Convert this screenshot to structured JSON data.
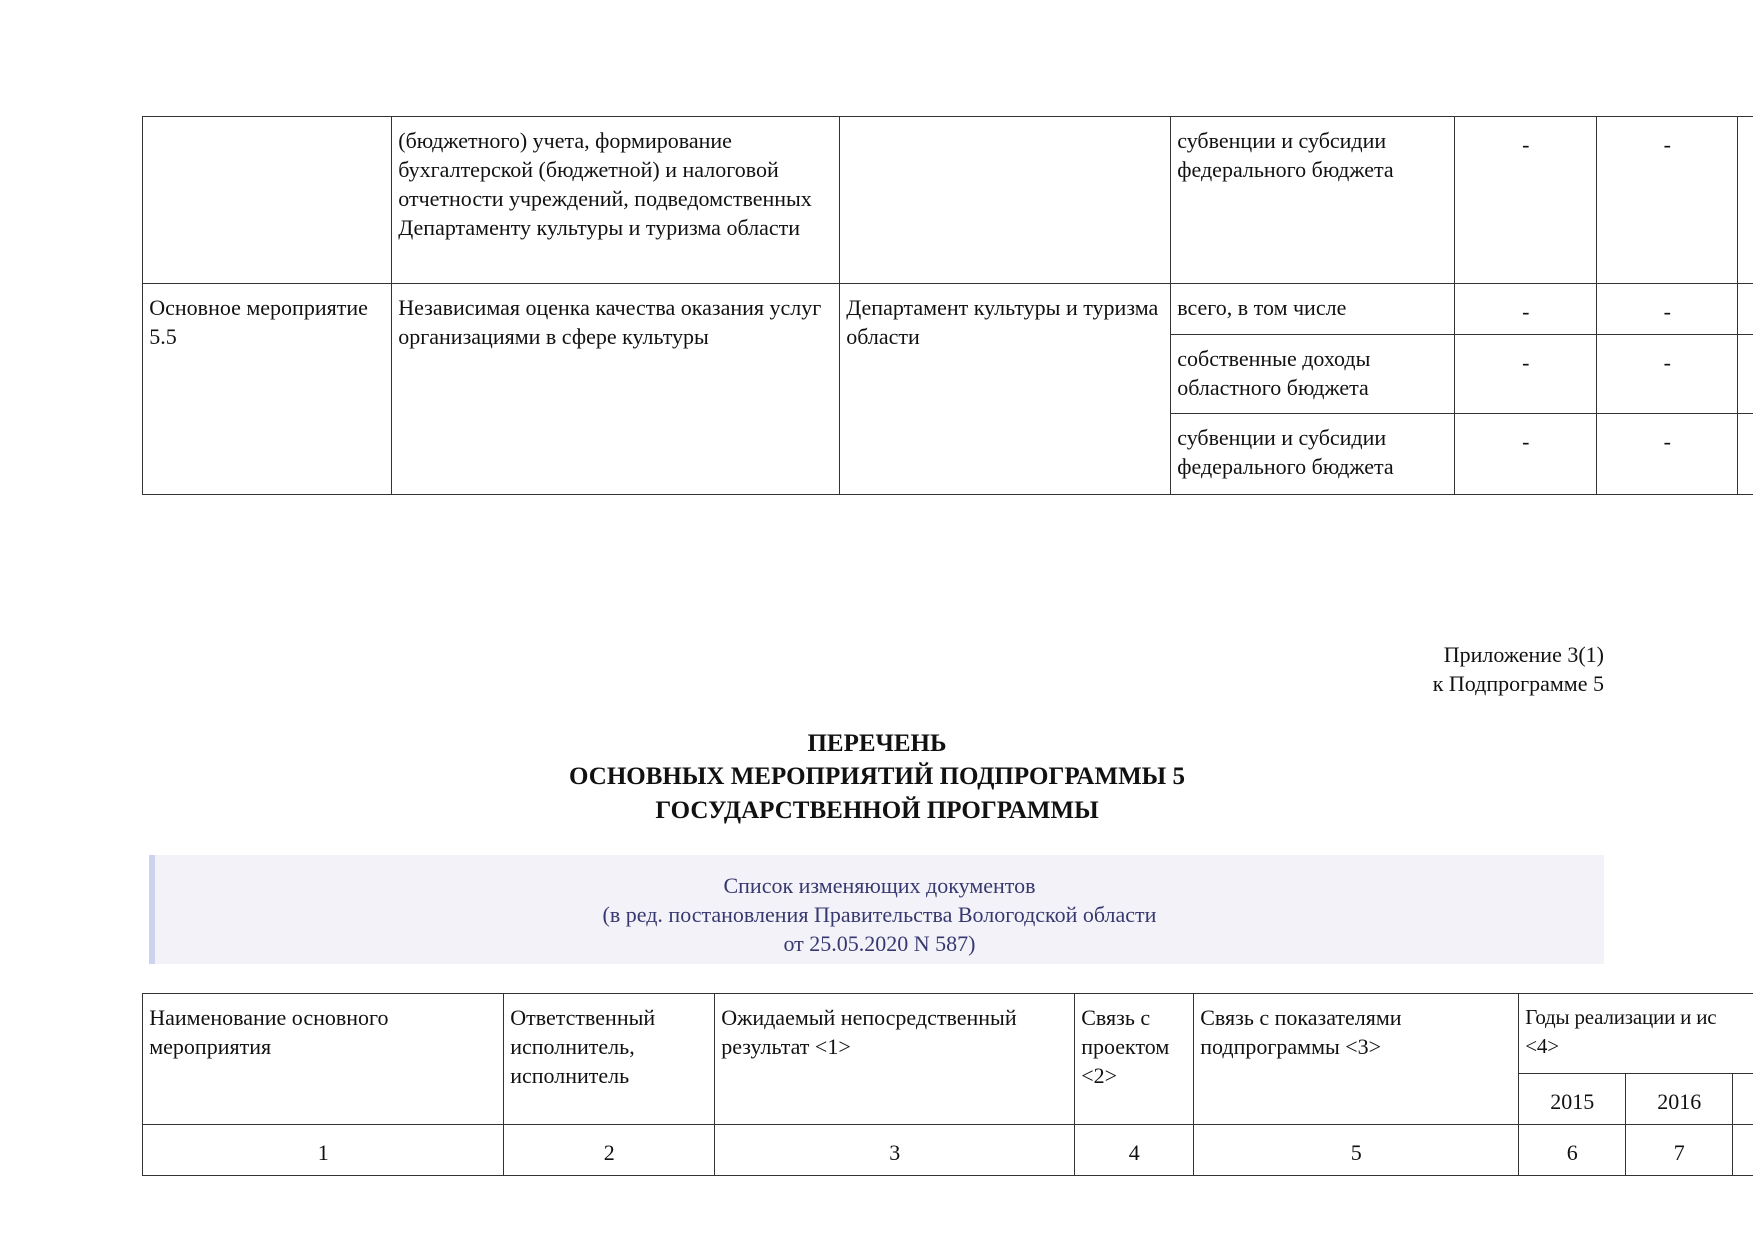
{
  "top_table": {
    "row_prev": {
      "description": "(бюджетного) учета, формирование бухгалтерской (бюджетной) и налоговой отчетности учреждений, подведомственных Департаменту культуры и туризма области",
      "source": "субвенции и субсидии федерального бюджета",
      "v1": "-",
      "v2": "-"
    },
    "row_55": {
      "name": "Основное мероприятие 5.5",
      "description": "Независимая оценка качества оказания услуг организациями в сфере культуры",
      "executor": "Департамент культуры и туризма области",
      "sources": [
        {
          "label": "всего, в том числе",
          "v1": "-",
          "v2": "-"
        },
        {
          "label": "собственные доходы областного бюджета",
          "v1": "-",
          "v2": "-"
        },
        {
          "label": "субвенции и субсидии федерального бюджета",
          "v1": "-",
          "v2": "-"
        }
      ]
    }
  },
  "appendix": {
    "line1": "Приложение 3(1)",
    "line2": "к Подпрограмме 5"
  },
  "title": {
    "line1": "ПЕРЕЧЕНЬ",
    "line2": "ОСНОВНЫХ МЕРОПРИЯТИЙ ПОДПРОГРАММЫ 5",
    "line3": "ГОСУДАРСТВЕННОЙ ПРОГРАММЫ"
  },
  "changes": {
    "line1": "Список изменяющих документов",
    "line2": "(в ред. постановления Правительства Вологодской области",
    "line3": "от 25.05.2020 N 587)"
  },
  "bottom_table": {
    "headers": [
      "Наименование основного мероприятия",
      "Ответственный исполнитель, исполнитель",
      "Ожидаемый непосредственный результат <1>",
      "Связь с проектом <2>",
      "Связь с показателями подпрограммы <3>",
      "Годы реализации и ис\n<4>"
    ],
    "years": [
      "2015",
      "2016"
    ],
    "numbers": [
      "1",
      "2",
      "3",
      "4",
      "5",
      "6",
      "7"
    ]
  }
}
